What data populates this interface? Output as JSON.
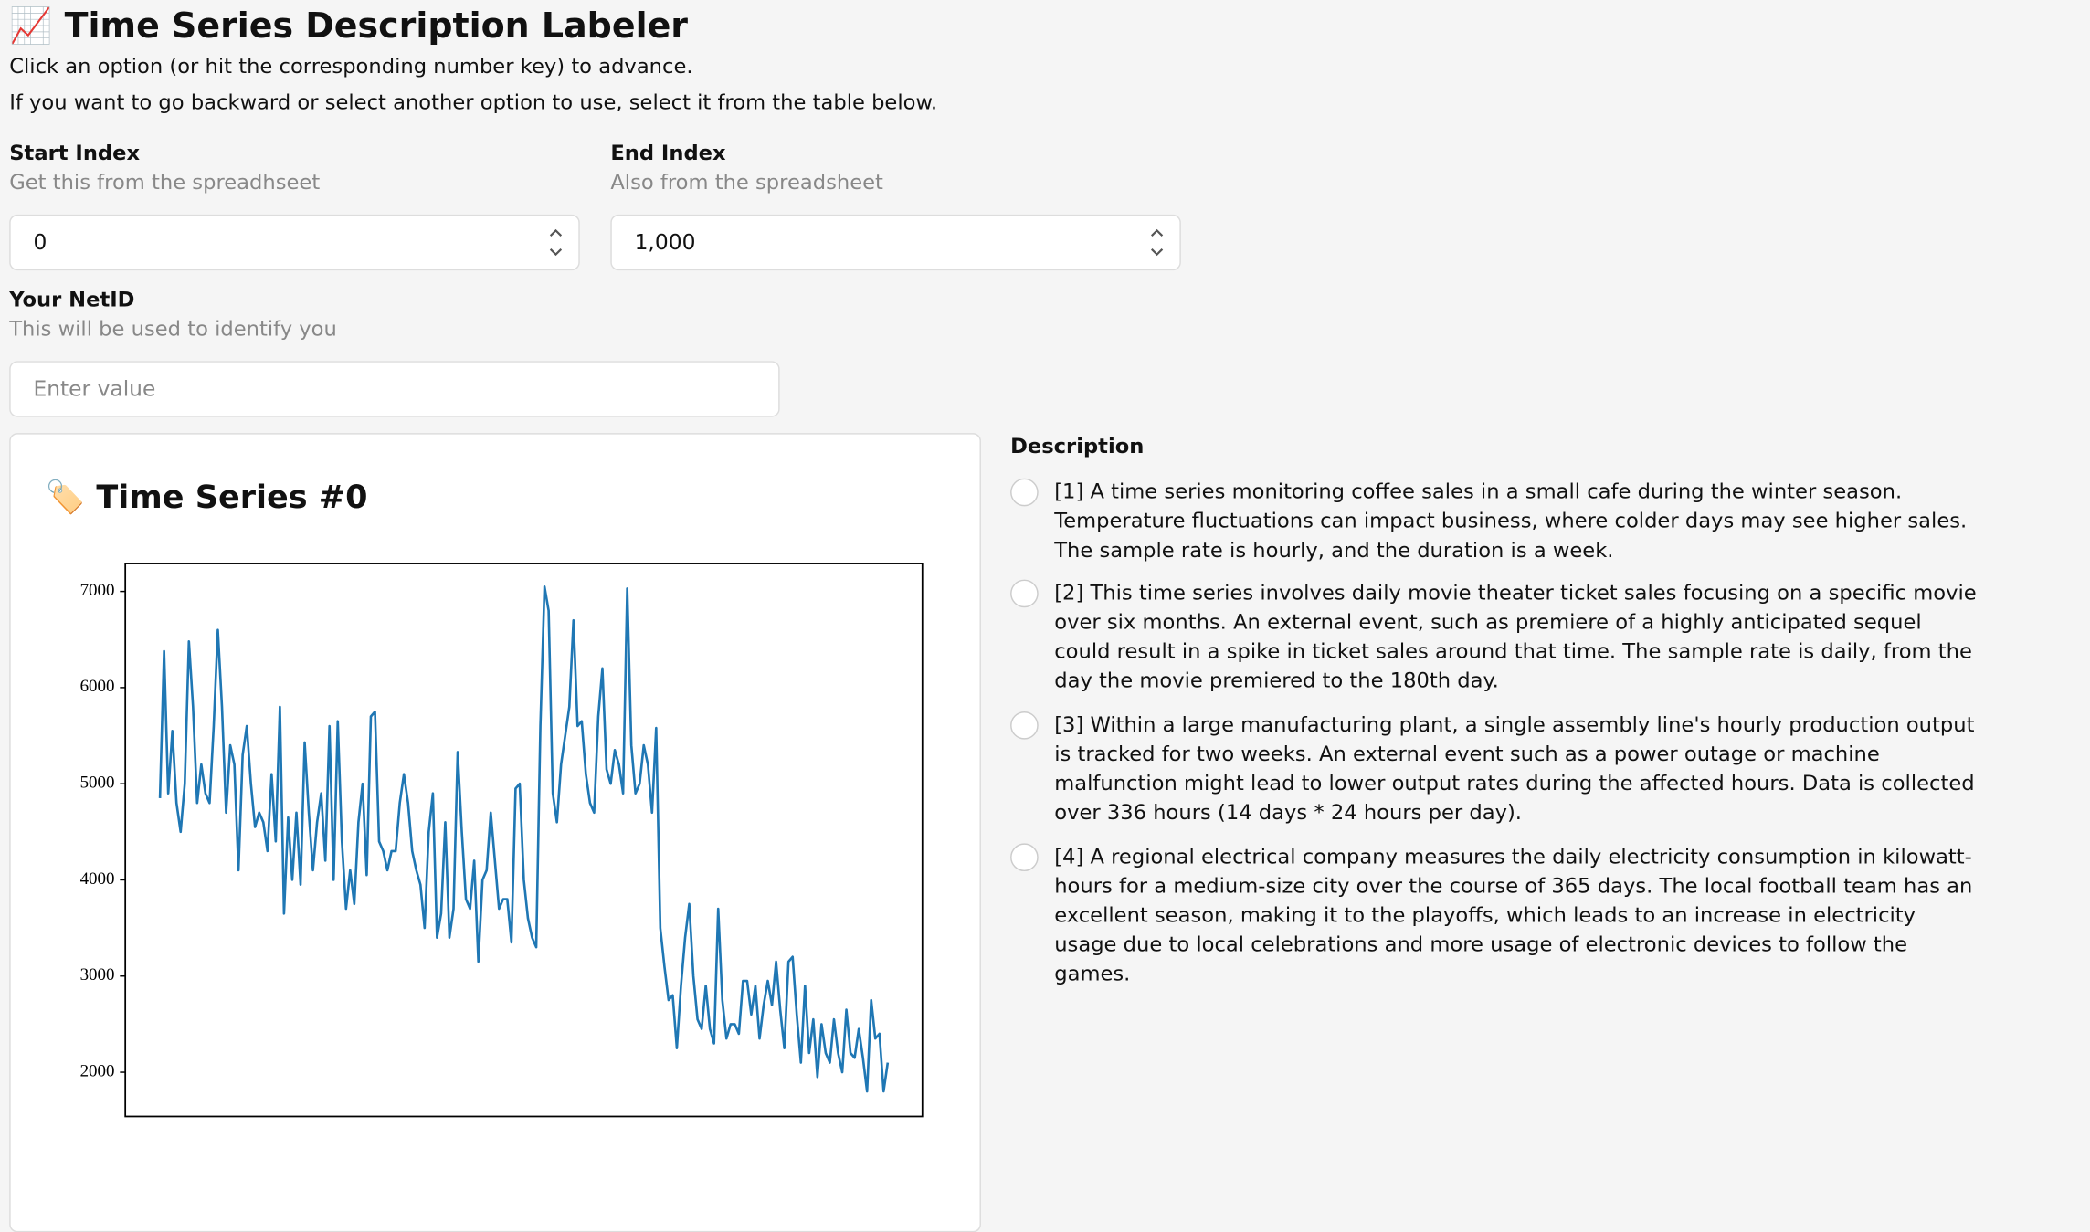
{
  "header": {
    "title": "📈 Time Series Description Labeler",
    "instructions": [
      "Click an option (or hit the corresponding number key) to advance.",
      "If you want to go backward or select another option to use, select it from the table below."
    ]
  },
  "fields": [
    {
      "label": "Start Index",
      "help": "Get this from the spreadhseet",
      "value": "0"
    },
    {
      "label": "End Index",
      "help": "Also from the spreadsheet",
      "value": "1,000"
    },
    {
      "label": "Your NetID",
      "help": "This will be used to identify you",
      "placeholder": "Enter value"
    }
  ],
  "card": {
    "title": "🏷️ Time Series #0"
  },
  "chart_data": {
    "type": "line",
    "color": "#1f77b4",
    "values": [
      4850,
      6380,
      4900,
      5550,
      4800,
      4500,
      5000,
      6480,
      5800,
      4800,
      5200,
      4900,
      4800,
      5600,
      6600,
      5800,
      4700,
      5400,
      5200,
      4100,
      5300,
      5600,
      5000,
      4550,
      4700,
      4600,
      4300,
      5100,
      4400,
      5800,
      3650,
      4650,
      4000,
      4700,
      3950,
      5430,
      4700,
      4100,
      4600,
      4900,
      4200,
      5600,
      4000,
      5650,
      4400,
      3700,
      4100,
      3750,
      4600,
      5000,
      4050,
      5700,
      5750,
      4400,
      4300,
      4100,
      4300,
      4300,
      4800,
      5100,
      4800,
      4300,
      4100,
      3950,
      3500,
      4500,
      4900,
      3400,
      3650,
      4600,
      3400,
      3700,
      5330,
      4500,
      3800,
      3700,
      4200,
      3150,
      4000,
      4100,
      4700,
      4200,
      3700,
      3800,
      3800,
      3350,
      4950,
      5000,
      4000,
      3600,
      3400,
      3300,
      5600,
      7050,
      6800,
      4900,
      4600,
      5200,
      5500,
      5800,
      6700,
      5600,
      5650,
      5100,
      4800,
      4700,
      5700,
      6200,
      5150,
      5000,
      5350,
      5200,
      4900,
      7030,
      5400,
      4900,
      5000,
      5400,
      5200,
      4700,
      5580,
      3500,
      3100,
      2750,
      2800,
      2250,
      2900,
      3400,
      3750,
      3000,
      2550,
      2450,
      2900,
      2450,
      2300,
      3700,
      2750,
      2350,
      2500,
      2500,
      2400,
      2950,
      2950,
      2600,
      2900,
      2350,
      2700,
      2950,
      2700,
      3150,
      2650,
      2250,
      3150,
      3200,
      2600,
      2100,
      2900,
      2200,
      2550,
      1950,
      2500,
      2200,
      2100,
      2550,
      2200,
      2000,
      2650,
      2200,
      2150,
      2450,
      2150,
      1800,
      2750,
      2350,
      2400,
      1800,
      2100
    ],
    "ylim": [
      1540,
      7290
    ],
    "yticks": [
      2000,
      3000,
      4000,
      5000,
      6000,
      7000
    ]
  },
  "description": {
    "label": "Description",
    "options": [
      "[1] A time series monitoring coffee sales in a small cafe during the winter season. Temperature fluctuations can impact business, where colder days may see higher sales. The sample rate is hourly, and the duration is a week.",
      "[2] This time series involves daily movie theater ticket sales focusing on a specific movie over six months. An external event, such as premiere of a highly anticipated sequel could result in a spike in ticket sales around that time. The sample rate is daily, from the day the movie premiered to the 180th day.",
      "[3] Within a large manufacturing plant, a single assembly line's hourly production output is tracked for two weeks. An external event such as a power outage or machine malfunction might lead to lower output rates during the affected hours. Data is collected over 336 hours (14 days * 24 hours per day).",
      "[4] A regional electrical company measures the daily electricity consumption in kilowatt-hours for a medium-size city over the course of 365 days. The local football team has an excellent season, making it to the playoffs, which leads to an increase in electricity usage due to local celebrations and more usage of electronic devices to follow the games."
    ]
  }
}
